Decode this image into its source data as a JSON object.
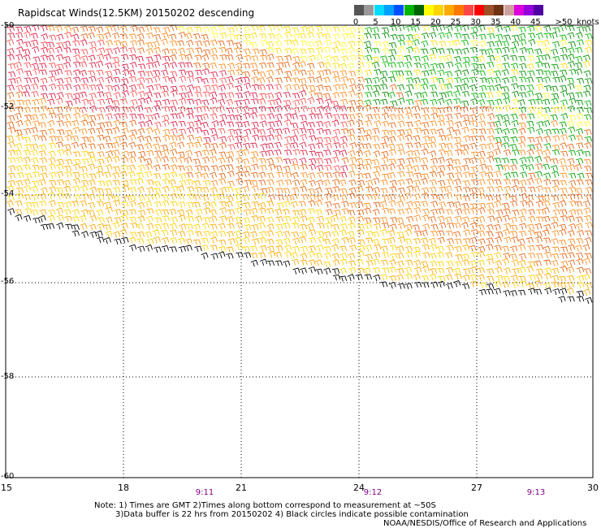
{
  "title": "Rapidscat Winds(12.5KM) 20150202 descending",
  "legend": {
    "swatches": [
      "#555555",
      "#999999",
      "#00dcff",
      "#00a0ff",
      "#0050ff",
      "#00b400",
      "#006400",
      "#ffff00",
      "#ffd200",
      "#ffaa00",
      "#ff7800",
      "#ff4646",
      "#ff0000",
      "#a05028",
      "#6e3214",
      "#d0a0a0",
      "#dc00dc",
      "#9600dc",
      "#5000a0"
    ],
    "labels": [
      "0",
      "5",
      "10",
      "15",
      "20",
      "25",
      "30",
      "35",
      "40",
      "45"
    ],
    "max_label": ">50",
    "units": "knots"
  },
  "axes": {
    "lat_labels": [
      "-50",
      "-52",
      "-54",
      "-56",
      "-58",
      "-60"
    ],
    "lon_labels": [
      "15",
      "18",
      "21",
      "24",
      "27",
      "30"
    ],
    "time_labels": [
      "9:11",
      "9:12",
      "9:13"
    ]
  },
  "notes": {
    "line1": "Note: 1) Times are GMT 2)Times along bottom correspond to measurement at ~50S",
    "line2": "3)Data buffer is 22 hrs from 20150202 4) Black circles indicate possible contamination",
    "line3": "NOAA/NESDIS/Office of Research and Applications"
  }
}
